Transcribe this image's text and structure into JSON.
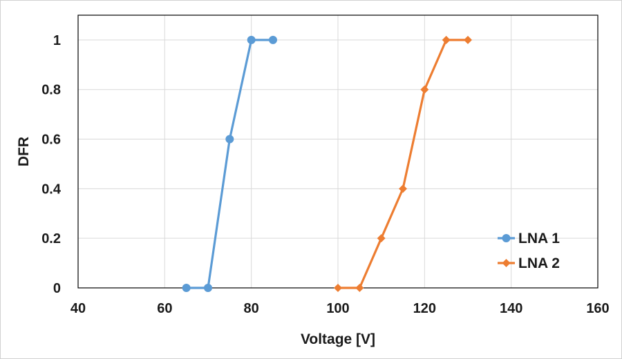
{
  "chart_data": {
    "type": "line",
    "title": "",
    "xlabel": "Voltage [V]",
    "ylabel": "DFR",
    "xlim": [
      40,
      160
    ],
    "ylim": [
      0,
      1.1
    ],
    "xticks": [
      40,
      60,
      80,
      100,
      120,
      140,
      160
    ],
    "xtick_labels": [
      "40",
      "60",
      "80",
      "100",
      "120",
      "140",
      "160"
    ],
    "yticks": [
      0,
      0.2,
      0.4,
      0.6,
      0.8,
      1
    ],
    "ytick_labels": [
      "0",
      "0.2",
      "0.4",
      "0.6",
      "0.8",
      "1"
    ],
    "grid": true,
    "legend_position": "bottom-right",
    "series": [
      {
        "name": "LNA 1",
        "color": "#5B9BD5",
        "marker": "circle",
        "x": [
          65,
          70,
          75,
          80,
          85
        ],
        "y": [
          0,
          0,
          0.6,
          1,
          1
        ]
      },
      {
        "name": "LNA 2",
        "color": "#ED7D31",
        "marker": "diamond",
        "x": [
          100,
          105,
          110,
          115,
          120,
          125,
          130
        ],
        "y": [
          0,
          0,
          0.2,
          0.4,
          0.8,
          1,
          1
        ]
      }
    ]
  }
}
